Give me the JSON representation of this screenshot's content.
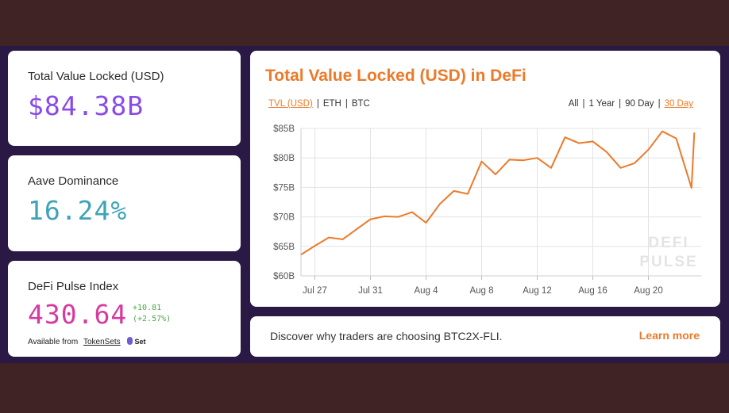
{
  "stats": {
    "tvl": {
      "label": "Total Value Locked (USD)",
      "value": "$84.38B",
      "color": "#8a4be8"
    },
    "aave": {
      "label": "Aave Dominance",
      "value": "16.24%",
      "color": "#3ea3b8"
    },
    "dpi": {
      "label": "DeFi Pulse Index",
      "value": "430.64",
      "color": "#d63aa0",
      "change_abs": "+10.81",
      "change_pct": "(+2.57%)",
      "available_prefix": "Available from",
      "available_link": "TokenSets",
      "logo_text": "Set"
    }
  },
  "chart_card": {
    "title": "Total Value Locked (USD) in DeFi",
    "currency_toggles": [
      "TVL (USD)",
      "ETH",
      "BTC"
    ],
    "currency_selected": 0,
    "range_toggles": [
      "All",
      "1 Year",
      "90 Day",
      "30 Day"
    ],
    "range_selected": 3,
    "watermark": [
      "DEFI",
      "PULSE"
    ]
  },
  "chart_data": {
    "type": "line",
    "title": "Total Value Locked (USD) in DeFi",
    "xlabel": "",
    "ylabel": "",
    "ylim": [
      60,
      85
    ],
    "yticks": [
      60,
      65,
      70,
      75,
      80,
      85
    ],
    "ytick_labels": [
      "$60B",
      "$65B",
      "$70B",
      "$75B",
      "$80B",
      "$85B"
    ],
    "xtick_labels": [
      "Jul 27",
      "Jul 31",
      "Aug 4",
      "Aug 8",
      "Aug 12",
      "Aug 16",
      "Aug 20"
    ],
    "xtick_positions": [
      1,
      5,
      9,
      13,
      17,
      21,
      25
    ],
    "xlim": [
      0,
      28.8
    ],
    "grid": true,
    "series": [
      {
        "name": "TVL (USD)",
        "color": "#ec7a2a",
        "x": [
          0,
          1,
          2,
          3,
          4,
          5,
          6,
          7,
          8,
          9,
          10,
          11,
          12,
          13,
          14,
          15,
          16,
          17,
          18,
          19,
          20,
          21,
          22,
          23,
          24,
          25,
          26,
          27,
          28.1,
          28.3
        ],
        "values": [
          63.6,
          65.1,
          66.5,
          66.2,
          67.9,
          69.6,
          70.1,
          70.0,
          70.8,
          69.0,
          72.2,
          74.4,
          73.9,
          79.4,
          77.2,
          79.7,
          79.6,
          80.0,
          78.3,
          83.5,
          82.5,
          82.8,
          81.0,
          78.3,
          79.1,
          81.4,
          84.5,
          83.3,
          74.9,
          84.3
        ]
      }
    ]
  },
  "banner": {
    "text": "Discover why traders are choosing BTC2X-FLI.",
    "link": "Learn more"
  }
}
